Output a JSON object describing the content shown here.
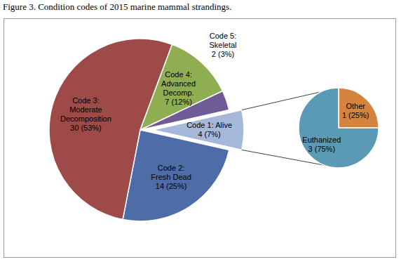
{
  "chart_data": [
    {
      "type": "pie",
      "title": "Figure 3. Condition codes of 2015 marine mammal strandings.",
      "categories": [
        "Code 1: Alive",
        "Code 2:\nFresh Dead",
        "Code 3:\nModerate\nDecomposition",
        "Code 4:\nAdvanced\nDecomp.",
        "Code 5:\nSkeletal"
      ],
      "values": [
        4,
        14,
        30,
        7,
        2
      ],
      "value_labels": [
        "4 (7%)",
        "14 (25%)",
        "30 (53%)",
        "7 (12%)",
        "2 (3%)"
      ],
      "colors": [
        "#a5b8da",
        "#4e6da8",
        "#9e4a48",
        "#8fae52",
        "#6f5b96"
      ],
      "data_labels": true
    },
    {
      "type": "pie",
      "categories": [
        "Other",
        "Euthanized"
      ],
      "values": [
        1,
        3
      ],
      "value_labels": [
        "1 (25%)",
        "3 (75%)"
      ],
      "colors": [
        "#d4843f",
        "#5a9ab5"
      ],
      "data_labels": true
    }
  ]
}
